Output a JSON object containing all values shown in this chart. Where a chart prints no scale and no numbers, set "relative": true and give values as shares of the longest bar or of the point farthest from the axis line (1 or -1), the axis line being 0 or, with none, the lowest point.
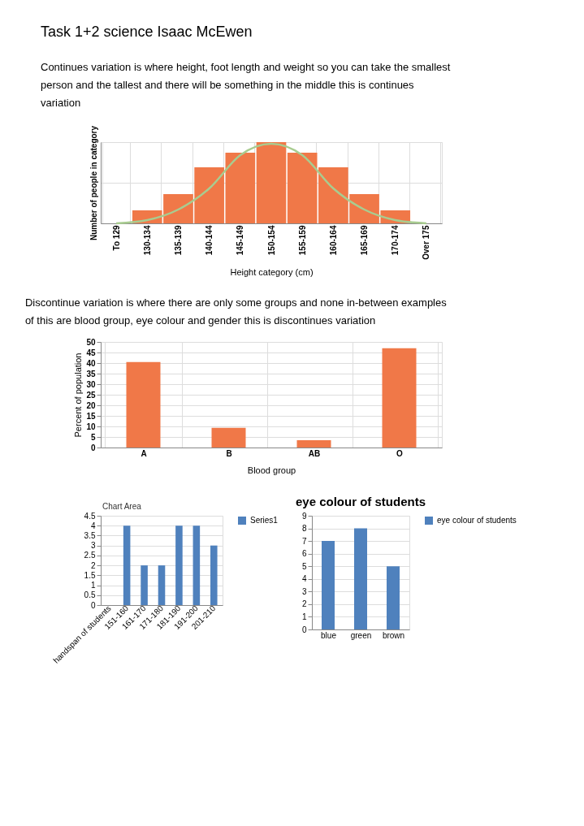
{
  "chart_data": [
    {
      "type": "bar",
      "title": "Task 1+2 science Isaac McEwen",
      "subtitle": "Continues variation is where height, foot length and weight so you can take the smallest person and the tallest and there will be something in the middle this is continues variation",
      "xlabel": "Height category (cm)",
      "ylabel": "Number of people in category",
      "relative": true,
      "grid": true,
      "categories": [
        "To 129",
        "130-134",
        "135-139",
        "140-144",
        "145-149",
        "150-154",
        "155-159",
        "160-164",
        "165-169",
        "170-174",
        "Over 175"
      ],
      "series": [
        {
          "type": "bar",
          "color": "#f07848",
          "values": [
            0,
            0.16,
            0.36,
            0.69,
            0.87,
            1,
            0.87,
            0.69,
            0.36,
            0.16,
            0
          ]
        },
        {
          "type": "line",
          "color": "#a8cc90",
          "values": [
            0,
            0.04,
            0.17,
            0.43,
            0.84,
            0.98,
            0.84,
            0.43,
            0.17,
            0.04,
            0
          ]
        }
      ]
    },
    {
      "type": "bar",
      "subtitle": "Discontinue variation is where there are only some groups and none in-between examples of this are blood group, eye colour and gender  this is discontinues variation",
      "xlabel": "Blood group",
      "ylabel": "Percent of population",
      "grid": true,
      "categories": [
        "A",
        "B",
        "AB",
        "O"
      ],
      "values": [
        40.5,
        9.3,
        3.5,
        47
      ],
      "color": "#f07848",
      "ylim": [
        0,
        50
      ],
      "yticks": [
        0,
        5,
        10,
        15,
        20,
        25,
        30,
        35,
        40,
        45,
        50
      ]
    },
    {
      "type": "bar",
      "grid": "y",
      "legend": "right",
      "annotations": [
        "Chart Area"
      ],
      "categories": [
        "handspan of students",
        "151-160",
        "161-170",
        "171-180",
        "181-190",
        "191-200",
        "201-210"
      ],
      "series": [
        {
          "name": "Series1",
          "color": "#4f81bd",
          "values": [
            null,
            4,
            2,
            2,
            4,
            4,
            3
          ]
        }
      ],
      "ylim": [
        0,
        4.5
      ],
      "yticks": [
        0,
        0.5,
        1,
        1.5,
        2,
        2.5,
        3,
        3.5,
        4,
        4.5
      ]
    },
    {
      "type": "bar",
      "title": "eye colour of students",
      "grid": "y",
      "legend": "right",
      "categories": [
        "blue",
        "green",
        "brown"
      ],
      "series": [
        {
          "name": "eye colour of students",
          "color": "#4f81bd",
          "values": [
            7,
            8,
            5
          ]
        }
      ],
      "ylim": [
        0,
        9
      ],
      "yticks": [
        0,
        1,
        2,
        3,
        4,
        5,
        6,
        7,
        8,
        9
      ]
    }
  ]
}
